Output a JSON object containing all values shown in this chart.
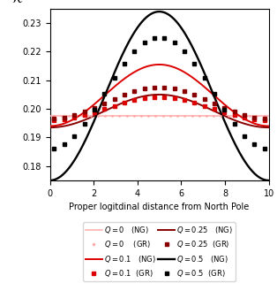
{
  "xlabel": "Proper logitdinal distance from North Pole",
  "ylabel": "$\\mathcal{R}$",
  "xlim": [
    0,
    10
  ],
  "ylim": [
    0.175,
    0.235
  ],
  "yticks": [
    0.18,
    0.19,
    0.2,
    0.21,
    0.22,
    0.23
  ],
  "xticks": [
    0,
    2,
    4,
    6,
    8,
    10
  ],
  "curves": [
    {
      "Q": 0.0,
      "color": "#ffaaaa",
      "ng_pole": 0.1975,
      "ng_eq": 0.1975,
      "gr_pole": 0.1975,
      "gr_eq": 0.1975,
      "lw_ng": 1.1,
      "lw_gr": 1.1,
      "label_ng": "$Q = 0$",
      "label_gr": "$Q = 0$"
    },
    {
      "Q": 0.1,
      "color": "#dd0000",
      "ng_pole": 0.2155,
      "ng_eq": 0.194,
      "gr_pole": 0.204,
      "gr_eq": 0.196,
      "lw_ng": 1.4,
      "lw_gr": 1.4,
      "label_ng": "$Q = 0.1$",
      "label_gr": "$Q = 0.1$"
    },
    {
      "Q": 0.25,
      "color": "#880000",
      "ng_pole": 0.205,
      "ng_eq": 0.1935,
      "gr_pole": 0.2075,
      "gr_eq": 0.1965,
      "lw_ng": 1.4,
      "lw_gr": 1.4,
      "label_ng": "$Q = 0.25$",
      "label_gr": "$Q = 0.25$"
    },
    {
      "Q": 0.5,
      "color": "#000000",
      "ng_pole": 0.234,
      "ng_eq": 0.175,
      "gr_pole": 0.225,
      "gr_eq": 0.186,
      "lw_ng": 1.7,
      "lw_gr": 1.7,
      "label_ng": "$Q = 0.5$",
      "label_gr": "$Q = 0.5$"
    }
  ],
  "legend_ncol": 2,
  "legend_fontsize": 6.0,
  "tick_fontsize": 7,
  "xlabel_fontsize": 7,
  "ylabel_fontsize": 10
}
